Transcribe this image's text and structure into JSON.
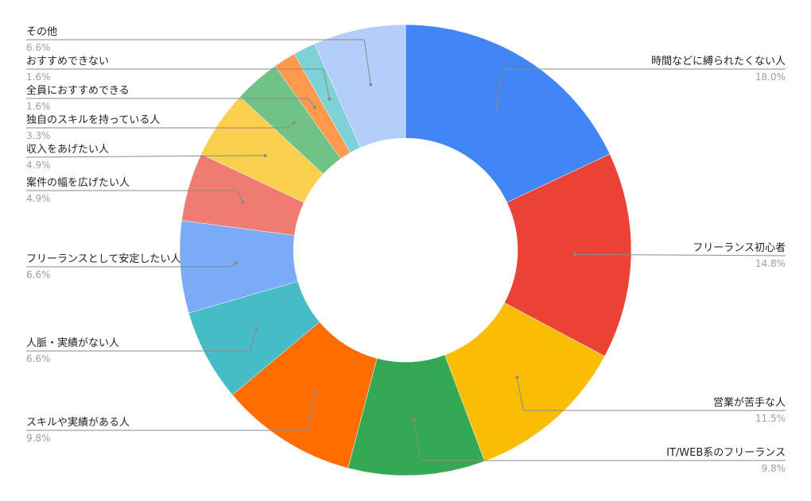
{
  "chart_data": {
    "type": "pie",
    "title": "",
    "legend": "none",
    "categories": [
      "時間などに縛られたくない人",
      "フリーランス初心者",
      "営業が苦手な人",
      "IT/WEB系のフリーランス",
      "スキルや実績がある人",
      "人脈・実績がない人",
      "フリーランスとして安定したい人",
      "案件の幅を広げたい人",
      "収入をあげたい人",
      "独自のスキルを持っている人",
      "全員におすすめできる",
      "おすすめできない",
      "その他"
    ],
    "values": [
      18.0,
      14.8,
      11.5,
      9.8,
      9.8,
      6.6,
      6.6,
      4.9,
      4.9,
      3.3,
      1.6,
      1.6,
      6.6
    ],
    "percent_labels": [
      "18.0%",
      "14.8%",
      "11.5%",
      "9.8%",
      "9.8%",
      "6.6%",
      "6.6%",
      "4.9%",
      "4.9%",
      "3.3%",
      "1.6%",
      "1.6%",
      "6.6%"
    ],
    "colors": [
      "#4285f4",
      "#ea4335",
      "#fbbc04",
      "#34a853",
      "#ff6d01",
      "#46bdc6",
      "#7baaf7",
      "#f07b72",
      "#fcd04f",
      "#71c287",
      "#ff994d",
      "#7ed1d7",
      "#b3cefb"
    ]
  }
}
